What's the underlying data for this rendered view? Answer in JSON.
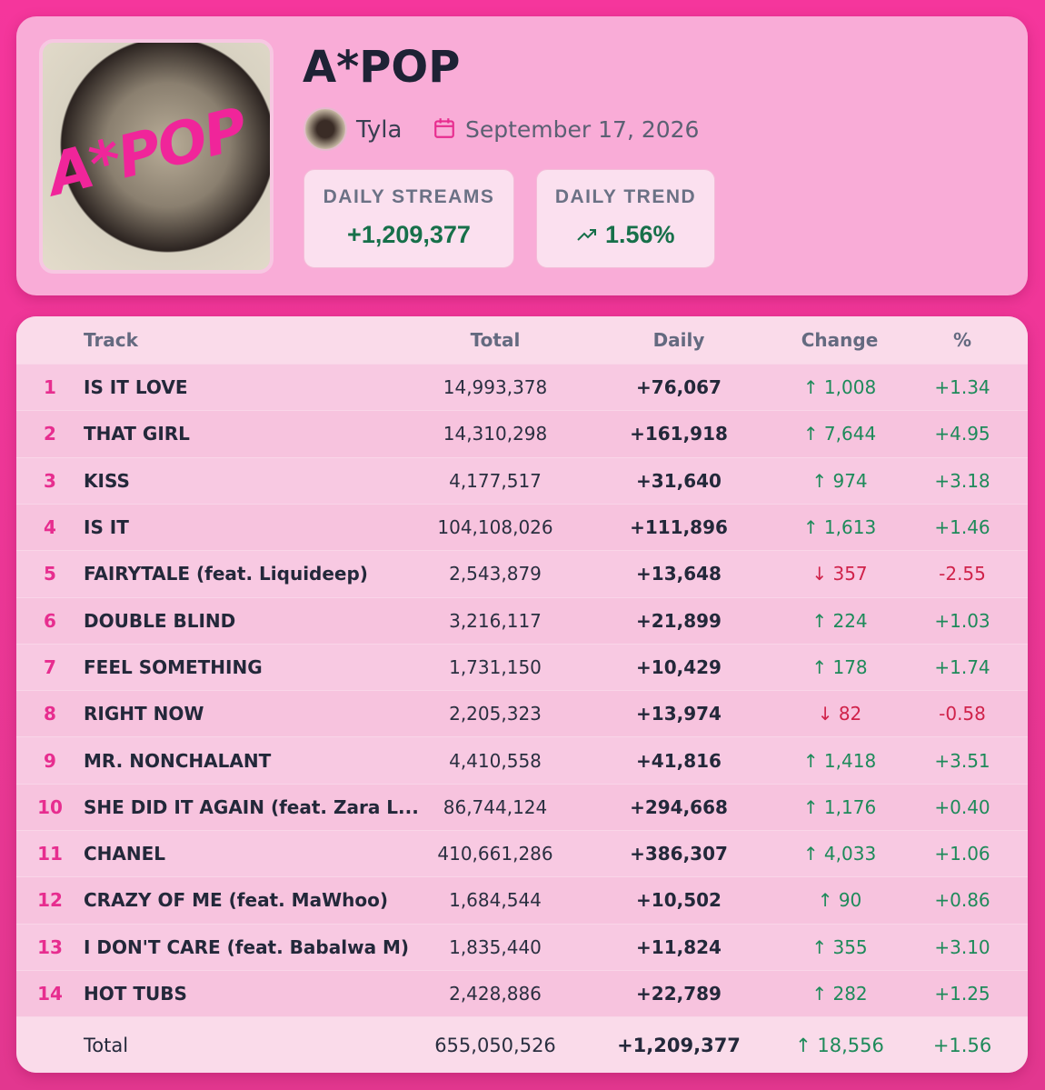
{
  "header": {
    "title": "A*POP",
    "artist": "Tyla",
    "date": "September 17, 2026",
    "stats": [
      {
        "label": "DAILY STREAMS",
        "value": "+1,209,377"
      },
      {
        "label": "DAILY TREND",
        "value": "1.56%"
      }
    ]
  },
  "table": {
    "columns": [
      "Track",
      "Total",
      "Daily",
      "Change",
      "%"
    ],
    "rows": [
      [
        "1",
        "IS IT LOVE",
        "14,993,378",
        "+76,067",
        "↑ 1,008",
        "+1.34"
      ],
      [
        "2",
        "THAT GIRL",
        "14,310,298",
        "+161,918",
        "↑ 7,644",
        "+4.95"
      ],
      [
        "3",
        "KISS",
        "4,177,517",
        "+31,640",
        "↑ 974",
        "+3.18"
      ],
      [
        "4",
        "IS IT",
        "104,108,026",
        "+111,896",
        "↑ 1,613",
        "+1.46"
      ],
      [
        "5",
        "FAIRYTALE (feat. Liquideep)",
        "2,543,879",
        "+13,648",
        "↓ 357",
        "-2.55"
      ],
      [
        "6",
        "DOUBLE BLIND",
        "3,216,117",
        "+21,899",
        "↑ 224",
        "+1.03"
      ],
      [
        "7",
        "FEEL SOMETHING",
        "1,731,150",
        "+10,429",
        "↑ 178",
        "+1.74"
      ],
      [
        "8",
        "RIGHT NOW",
        "2,205,323",
        "+13,974",
        "↓ 82",
        "-0.58"
      ],
      [
        "9",
        "MR. NONCHALANT",
        "4,410,558",
        "+41,816",
        "↑ 1,418",
        "+3.51"
      ],
      [
        "10",
        "SHE DID IT AGAIN (feat. Zara L...",
        "86,744,124",
        "+294,668",
        "↑ 1,176",
        "+0.40"
      ],
      [
        "11",
        "CHANEL",
        "410,661,286",
        "+386,307",
        "↑ 4,033",
        "+1.06"
      ],
      [
        "12",
        "CRAZY OF ME (feat. MaWhoo)",
        "1,684,544",
        "+10,502",
        "↑ 90",
        "+0.86"
      ],
      [
        "13",
        "I DON'T CARE (feat. Babalwa M)",
        "1,835,440",
        "+11,824",
        "↑ 355",
        "+3.10"
      ],
      [
        "14",
        "HOT TUBS",
        "2,428,886",
        "+22,789",
        "↑ 282",
        "+1.25"
      ]
    ],
    "footer": [
      "Total",
      "655,050,526",
      "+1,209,377",
      "↑ 18,556",
      "+1.56"
    ]
  }
}
